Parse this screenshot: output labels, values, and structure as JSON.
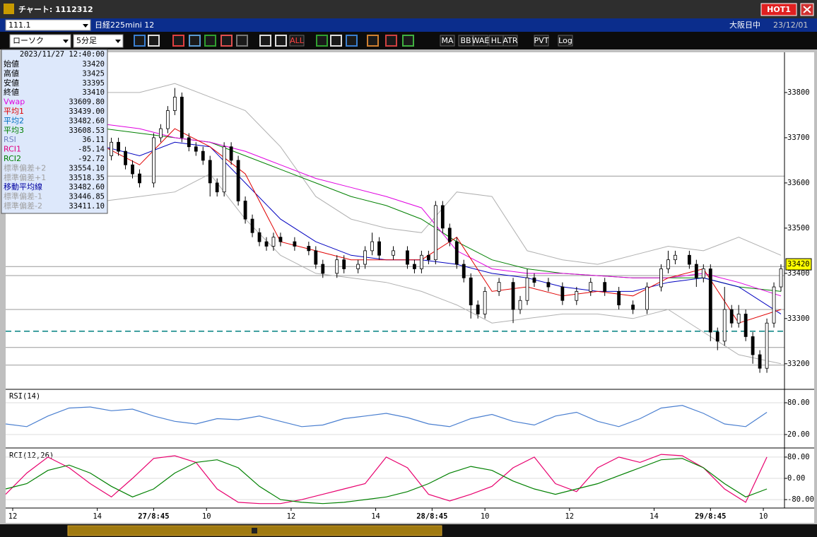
{
  "window": {
    "title": "チャート: 1112312",
    "hot": "HOT1"
  },
  "header": {
    "symbol_input": "111.1",
    "symbol_name": "日経225mini 12",
    "session": "大阪日中",
    "date": "23/12/01"
  },
  "toolbar": {
    "chart_type": "ローソク",
    "timeframe": "5分足",
    "buttons": [
      "ALL",
      "MA",
      "BB",
      "WAE",
      "HL",
      "ATR",
      "PVT",
      "Log"
    ]
  },
  "info_panel": {
    "datetime": "2023/11/27  12:40:00",
    "rows": [
      {
        "label": "始値",
        "value": "33420",
        "color": "#000000"
      },
      {
        "label": "高値",
        "value": "33425",
        "color": "#000000"
      },
      {
        "label": "安値",
        "value": "33395",
        "color": "#000000"
      },
      {
        "label": "終値",
        "value": "33410",
        "color": "#000000"
      },
      {
        "label": "Vwap",
        "value": "33609.80",
        "color": "#e000e0"
      },
      {
        "label": "平均1",
        "value": "33439.00",
        "color": "#e00000"
      },
      {
        "label": "平均2",
        "value": "33482.60",
        "color": "#0070c0"
      },
      {
        "label": "平均3",
        "value": "33608.53",
        "color": "#008000"
      },
      {
        "label": "RSI",
        "value": "36.11",
        "color": "#7080c0"
      },
      {
        "label": "RCI1",
        "value": "-85.14",
        "color": "#e00080"
      },
      {
        "label": "RCI2",
        "value": "-92.72",
        "color": "#008000"
      },
      {
        "label": "標準偏差+2",
        "value": "33554.10",
        "color": "#a0a0a0"
      },
      {
        "label": "標準偏差+1",
        "value": "33518.35",
        "color": "#a0a0a0"
      },
      {
        "label": "移動平均線",
        "value": "33482.60",
        "color": "#0000a0"
      },
      {
        "label": "標準偏差-1",
        "value": "33446.85",
        "color": "#a0a0a0"
      },
      {
        "label": "標準偏差-2",
        "value": "33411.10",
        "color": "#a0a0a0"
      }
    ]
  },
  "chart_data": [
    {
      "type": "candlestick",
      "x": [
        28,
        30,
        32,
        34,
        36,
        38,
        42,
        44,
        46,
        48,
        50,
        52,
        54,
        56,
        58,
        60,
        62,
        64,
        66,
        68,
        70,
        72,
        74,
        76,
        78,
        82,
        86,
        88,
        90,
        94,
        96,
        100,
        102,
        104,
        106,
        110,
        114,
        116,
        118,
        120,
        122,
        124,
        126,
        128,
        130,
        132,
        134,
        136,
        140,
        144,
        146,
        148,
        150,
        154,
        158,
        162,
        166,
        170,
        174,
        178,
        182,
        186,
        188,
        190,
        194,
        196,
        198,
        200,
        202,
        204,
        206,
        208,
        210,
        212,
        214,
        216,
        218,
        220
      ],
      "open": [
        33650,
        33660,
        33690,
        33670,
        33640,
        33620,
        33600,
        33700,
        33720,
        33760,
        33790,
        33700,
        33680,
        33670,
        33650,
        33600,
        33580,
        33680,
        33650,
        33560,
        33520,
        33490,
        33470,
        33460,
        33480,
        33470,
        33460,
        33450,
        33420,
        33400,
        33430,
        33410,
        33420,
        33450,
        33470,
        33440,
        33450,
        33420,
        33410,
        33440,
        33430,
        33550,
        33500,
        33470,
        33420,
        33390,
        33330,
        33310,
        33360,
        33380,
        33320,
        33340,
        33390,
        33380,
        33370,
        33340,
        33360,
        33380,
        33360,
        33330,
        33320,
        33370,
        33410,
        33430,
        33440,
        33420,
        33390,
        33410,
        33270,
        33250,
        33320,
        33290,
        33310,
        33260,
        33220,
        33190,
        33290,
        33370
      ],
      "high": [
        33670,
        33700,
        33700,
        33680,
        33650,
        33630,
        33710,
        33730,
        33770,
        33810,
        33800,
        33710,
        33690,
        33680,
        33660,
        33610,
        33690,
        33690,
        33660,
        33570,
        33530,
        33500,
        33480,
        33490,
        33490,
        33480,
        33470,
        33460,
        33430,
        33440,
        33440,
        33430,
        33460,
        33490,
        33480,
        33460,
        33460,
        33430,
        33450,
        33450,
        33560,
        33560,
        33510,
        33480,
        33430,
        33400,
        33340,
        33370,
        33390,
        33390,
        33350,
        33410,
        33400,
        33390,
        33380,
        33370,
        33390,
        33390,
        33370,
        33340,
        33380,
        33420,
        33450,
        33450,
        33450,
        33430,
        33420,
        33420,
        33280,
        33370,
        33330,
        33330,
        33320,
        33270,
        33230,
        33300,
        33380,
        33420
      ],
      "low": [
        33640,
        33650,
        33660,
        33630,
        33610,
        33590,
        33590,
        33690,
        33710,
        33750,
        33690,
        33670,
        33660,
        33640,
        33570,
        33570,
        33570,
        33640,
        33550,
        33510,
        33480,
        33460,
        33450,
        33450,
        33460,
        33450,
        33440,
        33410,
        33390,
        33390,
        33400,
        33400,
        33410,
        33440,
        33430,
        33430,
        33410,
        33400,
        33400,
        33420,
        33420,
        33490,
        33460,
        33410,
        33380,
        33300,
        33300,
        33300,
        33350,
        33290,
        33310,
        33330,
        33370,
        33360,
        33330,
        33330,
        33350,
        33350,
        33320,
        33310,
        33310,
        33360,
        33400,
        33420,
        33410,
        33370,
        33380,
        33250,
        33230,
        33240,
        33280,
        33280,
        33250,
        33200,
        33180,
        33180,
        33280,
        33360
      ],
      "close": [
        33660,
        33690,
        33670,
        33640,
        33620,
        33600,
        33700,
        33720,
        33760,
        33790,
        33700,
        33680,
        33670,
        33650,
        33600,
        33580,
        33680,
        33650,
        33560,
        33520,
        33490,
        33470,
        33460,
        33480,
        33470,
        33460,
        33450,
        33420,
        33400,
        33430,
        33410,
        33420,
        33450,
        33470,
        33440,
        33450,
        33420,
        33410,
        33440,
        33430,
        33550,
        33500,
        33470,
        33420,
        33390,
        33330,
        33310,
        33360,
        33380,
        33320,
        33340,
        33390,
        33380,
        33370,
        33340,
        33360,
        33380,
        33360,
        33330,
        33320,
        33370,
        33410,
        33430,
        33440,
        33420,
        33390,
        33410,
        33270,
        33250,
        33320,
        33290,
        33310,
        33260,
        33220,
        33190,
        33290,
        33370,
        33410
      ],
      "series": [
        {
          "color": "#b0b0b0",
          "x": [
            28,
            38,
            48,
            58,
            68,
            78,
            88,
            98,
            108,
            118,
            128,
            138,
            148,
            158,
            168,
            178,
            188,
            198,
            208,
            220
          ],
          "values": [
            33800,
            33800,
            33820,
            33790,
            33760,
            33680,
            33570,
            33520,
            33500,
            33490,
            33580,
            33570,
            33450,
            33430,
            33420,
            33440,
            33460,
            33450,
            33480,
            33440
          ]
        },
        {
          "color": "#b0b0b0",
          "x": [
            28,
            38,
            48,
            58,
            68,
            78,
            88,
            98,
            108,
            118,
            128,
            138,
            148,
            158,
            168,
            178,
            188,
            198,
            208,
            220
          ],
          "values": [
            33560,
            33570,
            33580,
            33620,
            33520,
            33440,
            33400,
            33390,
            33380,
            33360,
            33330,
            33290,
            33300,
            33310,
            33310,
            33300,
            33320,
            33270,
            33220,
            33200
          ]
        },
        {
          "color": "#008000",
          "x": [
            28,
            38,
            48,
            58,
            68,
            78,
            88,
            98,
            108,
            118,
            128,
            138,
            148,
            158,
            168,
            178,
            188,
            198,
            208,
            220
          ],
          "values": [
            33720,
            33710,
            33700,
            33690,
            33660,
            33630,
            33600,
            33570,
            33550,
            33520,
            33470,
            33430,
            33410,
            33400,
            33395,
            33390,
            33390,
            33390,
            33370,
            33360
          ]
        },
        {
          "color": "#e000e0",
          "x": [
            28,
            38,
            48,
            58,
            68,
            78,
            88,
            98,
            108,
            118,
            128,
            138,
            148,
            158,
            168,
            178,
            188,
            198,
            208,
            220
          ],
          "values": [
            33730,
            33720,
            33700,
            33690,
            33670,
            33640,
            33610,
            33590,
            33570,
            33545,
            33450,
            33410,
            33400,
            33400,
            33395,
            33390,
            33390,
            33400,
            33380,
            33350
          ]
        },
        {
          "color": "#0000c0",
          "x": [
            28,
            38,
            48,
            58,
            68,
            78,
            88,
            98,
            108,
            118,
            128,
            138,
            148,
            158,
            168,
            178,
            188,
            198,
            208,
            220
          ],
          "values": [
            33680,
            33660,
            33690,
            33680,
            33600,
            33520,
            33470,
            33440,
            33430,
            33430,
            33420,
            33400,
            33390,
            33370,
            33360,
            33360,
            33380,
            33390,
            33370,
            33310
          ]
        },
        {
          "color": "#e00000",
          "x": [
            28,
            38,
            48,
            58,
            68,
            78,
            88,
            98,
            108,
            118,
            128,
            138,
            148,
            158,
            168,
            178,
            188,
            198,
            208,
            220
          ],
          "values": [
            33680,
            33640,
            33720,
            33680,
            33620,
            33470,
            33450,
            33430,
            33430,
            33430,
            33480,
            33360,
            33370,
            33350,
            33360,
            33350,
            33390,
            33410,
            33290,
            33320
          ]
        }
      ],
      "hlines": [
        33615,
        33415,
        33395,
        33320,
        33236,
        33197
      ],
      "dashed_line": {
        "value": 33272,
        "color": "#008080"
      },
      "last_price": 33420,
      "xlim": [
        0,
        221
      ],
      "ylim": [
        33145,
        33889
      ],
      "yticks": [
        33200,
        33300,
        33400,
        33500,
        33600,
        33700,
        33800
      ],
      "xticks": [
        {
          "value": 2,
          "label": "12"
        },
        {
          "value": 26,
          "label": "14"
        },
        {
          "value": 42,
          "label": "27/8:45"
        },
        {
          "value": 57,
          "label": "10"
        },
        {
          "value": 81,
          "label": "12"
        },
        {
          "value": 105,
          "label": "14"
        },
        {
          "value": 121,
          "label": "28/8:45"
        },
        {
          "value": 136,
          "label": "10"
        },
        {
          "value": 160,
          "label": "12"
        },
        {
          "value": 184,
          "label": "14"
        },
        {
          "value": 200,
          "label": "29/8:45"
        },
        {
          "value": 215,
          "label": "10"
        }
      ]
    },
    {
      "type": "line",
      "title": "RSI(14)",
      "x": [
        0,
        6,
        12,
        18,
        24,
        30,
        36,
        42,
        48,
        54,
        60,
        66,
        72,
        78,
        84,
        90,
        96,
        102,
        108,
        114,
        120,
        126,
        132,
        138,
        144,
        150,
        156,
        162,
        168,
        174,
        180,
        186,
        192,
        198,
        204,
        210,
        216
      ],
      "series": [
        {
          "color": "#4a7fd0",
          "values": [
            40,
            35,
            55,
            70,
            72,
            65,
            68,
            55,
            45,
            40,
            50,
            48,
            55,
            45,
            35,
            38,
            50,
            55,
            60,
            52,
            40,
            35,
            50,
            58,
            45,
            38,
            55,
            62,
            45,
            35,
            50,
            70,
            75,
            60,
            40,
            35,
            62
          ]
        }
      ],
      "xlim": [
        0,
        221
      ],
      "ylim": [
        -4,
        104
      ],
      "grid": true,
      "yticks": [
        {
          "value": 20,
          "label": "20.00"
        },
        {
          "value": 80,
          "label": "80.00"
        }
      ]
    },
    {
      "type": "line",
      "title": "RCI(12,26)",
      "x": [
        0,
        6,
        12,
        18,
        24,
        30,
        36,
        42,
        48,
        54,
        60,
        66,
        72,
        78,
        84,
        90,
        96,
        102,
        108,
        114,
        120,
        126,
        132,
        138,
        144,
        150,
        156,
        162,
        168,
        174,
        180,
        186,
        192,
        198,
        204,
        210,
        216
      ],
      "series": [
        {
          "color": "#e8006e",
          "values": [
            -60,
            20,
            80,
            40,
            -20,
            -70,
            0,
            75,
            85,
            60,
            -40,
            -90,
            -95,
            -95,
            -80,
            -60,
            -40,
            -20,
            80,
            40,
            -60,
            -85,
            -60,
            -30,
            40,
            80,
            -20,
            -50,
            40,
            80,
            60,
            90,
            85,
            40,
            -40,
            -90,
            80
          ]
        },
        {
          "color": "#008000",
          "values": [
            -40,
            -20,
            30,
            50,
            20,
            -30,
            -70,
            -40,
            20,
            60,
            70,
            40,
            -30,
            -80,
            -90,
            -95,
            -90,
            -80,
            -70,
            -50,
            -20,
            20,
            45,
            30,
            -10,
            -40,
            -60,
            -40,
            -20,
            10,
            40,
            70,
            75,
            40,
            -20,
            -70,
            -40
          ]
        }
      ],
      "xlim": [
        0,
        221
      ],
      "ylim": [
        -109,
        109
      ],
      "grid": true,
      "yticks": [
        {
          "value": -80,
          "label": "-80.00"
        },
        {
          "value": 0,
          "label": "0.00"
        },
        {
          "value": 80,
          "label": "80.00"
        }
      ]
    }
  ]
}
